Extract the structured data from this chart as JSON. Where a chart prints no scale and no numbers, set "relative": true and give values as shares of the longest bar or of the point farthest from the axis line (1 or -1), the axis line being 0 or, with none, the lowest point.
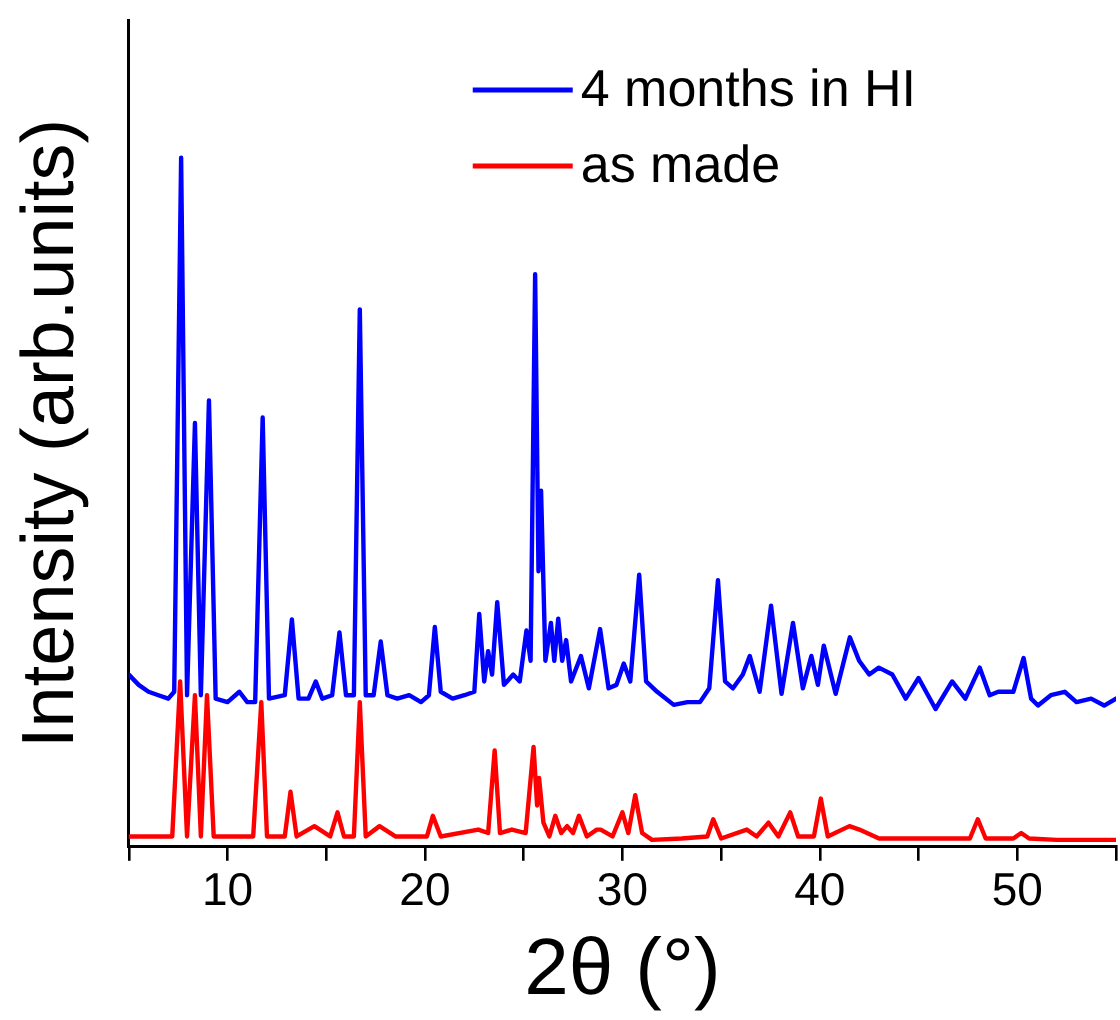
{
  "chart_data": {
    "type": "line",
    "xlabel": "2θ (°)",
    "ylabel": "Intensity (arb.units)",
    "relative": true,
    "legend": "top right",
    "marker": "none",
    "xlim": [
      5,
      55
    ],
    "xticks": [
      {
        "value": 5,
        "label": null
      },
      10,
      {
        "value": 15,
        "label": null
      },
      20,
      {
        "value": 25,
        "label": null
      },
      30,
      {
        "value": 35,
        "label": null
      },
      40,
      {
        "value": 45,
        "label": null
      },
      50,
      {
        "value": 55,
        "label": null
      }
    ],
    "series": [
      {
        "name": "4 months in HI",
        "color": "#0000ff",
        "x": [
          5,
          5.5,
          6,
          6.5,
          7,
          7.3,
          7.65,
          7.95,
          8.35,
          8.65,
          9.06,
          9.4,
          10,
          10.6,
          11,
          11.4,
          11.78,
          12.1,
          12.9,
          13.26,
          13.6,
          14.1,
          14.47,
          14.8,
          15.3,
          15.67,
          16.0,
          16.4,
          16.7,
          17.0,
          17.4,
          17.76,
          18.1,
          18.6,
          19.2,
          19.8,
          20.2,
          20.5,
          20.8,
          21.4,
          22.0,
          22.5,
          22.75,
          23.0,
          23.2,
          23.4,
          23.66,
          24.0,
          24.47,
          24.8,
          25.14,
          25.35,
          25.58,
          25.75,
          25.88,
          26.1,
          26.38,
          26.55,
          26.75,
          26.95,
          27.15,
          27.4,
          27.9,
          28.3,
          28.87,
          29.3,
          29.7,
          30.07,
          30.4,
          30.85,
          31.2,
          31.76,
          32.6,
          33.3,
          33.93,
          34.4,
          34.84,
          35.2,
          35.6,
          36.1,
          36.45,
          36.95,
          37.53,
          38.06,
          38.64,
          39.14,
          39.57,
          39.9,
          40.2,
          40.8,
          41.52,
          41.99,
          42.5,
          42.99,
          43.67,
          44.35,
          45.0,
          45.86,
          46.7,
          47.37,
          48.1,
          48.6,
          49.04,
          49.8,
          50.32,
          50.7,
          51.05,
          51.7,
          52.4,
          53.0,
          53.74,
          54.4,
          55
        ],
        "values": [
          0.25,
          0.235,
          0.225,
          0.22,
          0.215,
          0.225,
          1.0,
          0.22,
          0.615,
          0.22,
          0.648,
          0.215,
          0.21,
          0.225,
          0.21,
          0.21,
          0.623,
          0.215,
          0.22,
          0.33,
          0.215,
          0.215,
          0.24,
          0.215,
          0.22,
          0.311,
          0.22,
          0.22,
          0.78,
          0.22,
          0.22,
          0.298,
          0.22,
          0.215,
          0.22,
          0.21,
          0.22,
          0.319,
          0.225,
          0.215,
          0.22,
          0.225,
          0.338,
          0.24,
          0.284,
          0.25,
          0.355,
          0.235,
          0.25,
          0.24,
          0.314,
          0.27,
          0.831,
          0.4,
          0.517,
          0.27,
          0.325,
          0.27,
          0.331,
          0.27,
          0.3,
          0.24,
          0.277,
          0.23,
          0.316,
          0.23,
          0.235,
          0.266,
          0.24,
          0.395,
          0.24,
          0.225,
          0.206,
          0.21,
          0.21,
          0.23,
          0.387,
          0.24,
          0.23,
          0.25,
          0.277,
          0.225,
          0.35,
          0.222,
          0.325,
          0.23,
          0.277,
          0.235,
          0.292,
          0.222,
          0.304,
          0.27,
          0.25,
          0.26,
          0.25,
          0.215,
          0.245,
          0.2,
          0.24,
          0.215,
          0.26,
          0.22,
          0.225,
          0.225,
          0.274,
          0.215,
          0.205,
          0.22,
          0.225,
          0.21,
          0.215,
          0.205,
          0.215
        ]
      },
      {
        "name": "as made",
        "color": "#ff0000",
        "x": [
          5,
          7.2,
          7.6,
          7.95,
          8.35,
          8.65,
          8.96,
          9.3,
          11.3,
          11.71,
          12.0,
          12.9,
          13.19,
          13.5,
          14.4,
          15.2,
          15.57,
          15.9,
          16.4,
          16.7,
          17.0,
          17.7,
          18.5,
          20.1,
          20.4,
          20.8,
          22.7,
          23.2,
          23.53,
          23.8,
          24.4,
          25.1,
          25.5,
          25.68,
          25.78,
          26.0,
          26.3,
          26.6,
          26.9,
          27.2,
          27.5,
          27.8,
          28.2,
          28.7,
          28.9,
          29.5,
          30.0,
          30.3,
          30.65,
          31.0,
          31.5,
          33,
          34.3,
          34.6,
          35.0,
          36.3,
          36.8,
          37.4,
          37.9,
          38.5,
          38.9,
          39.7,
          40.05,
          40.4,
          41.5,
          42.0,
          43,
          45,
          47.6,
          48.0,
          48.4,
          49.8,
          50.2,
          50.6,
          52,
          55
        ],
        "values": [
          0.015,
          0.015,
          0.24,
          0.015,
          0.22,
          0.015,
          0.22,
          0.015,
          0.015,
          0.21,
          0.015,
          0.015,
          0.08,
          0.015,
          0.03,
          0.015,
          0.05,
          0.015,
          0.015,
          0.21,
          0.015,
          0.03,
          0.015,
          0.015,
          0.045,
          0.015,
          0.025,
          0.02,
          0.14,
          0.02,
          0.025,
          0.02,
          0.145,
          0.06,
          0.1,
          0.035,
          0.015,
          0.045,
          0.02,
          0.03,
          0.02,
          0.045,
          0.015,
          0.025,
          0.025,
          0.015,
          0.05,
          0.02,
          0.075,
          0.02,
          0.01,
          0.012,
          0.015,
          0.04,
          0.012,
          0.025,
          0.015,
          0.035,
          0.015,
          0.05,
          0.015,
          0.015,
          0.07,
          0.015,
          0.03,
          0.025,
          0.012,
          0.012,
          0.012,
          0.04,
          0.012,
          0.012,
          0.02,
          0.012,
          0.01,
          0.01
        ]
      }
    ]
  }
}
